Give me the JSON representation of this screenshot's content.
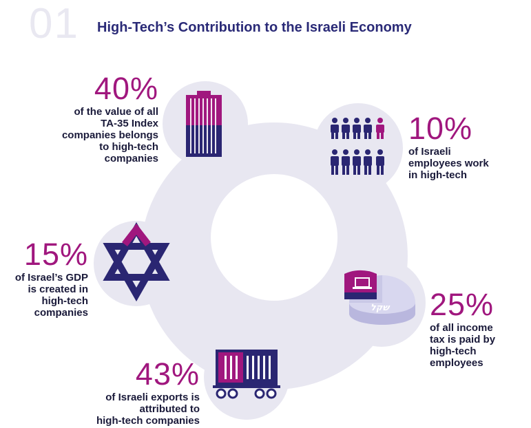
{
  "header": {
    "chapter_number": "01",
    "title": "High-Tech’s Contribution to the Israeli Economy"
  },
  "colors": {
    "ring": "#e8e7f1",
    "navy": "#2a2672",
    "magenta": "#a0177e",
    "lavender": "#c9c8e6"
  },
  "icons": [
    "building-icon",
    "people-icon",
    "star-of-david-icon",
    "tax-pie-icon",
    "cargo-train-icon"
  ],
  "stats": {
    "tase": {
      "percent": "40%",
      "lines": [
        "of the value of all",
        "TA-35 Index",
        "companies belongs",
        "to high-tech",
        "companies"
      ]
    },
    "employees": {
      "percent": "10%",
      "lines": [
        "of Israeli",
        "employees work",
        "in high-tech"
      ]
    },
    "gdp": {
      "percent": "15%",
      "lines": [
        "of Israel’s GDP",
        "is created in",
        "high-tech",
        "companies"
      ]
    },
    "income_tax": {
      "percent": "25%",
      "lines": [
        "of all income",
        "tax is paid by",
        "high-tech",
        "employees"
      ]
    },
    "exports": {
      "percent": "43%",
      "lines": [
        "of Israeli exports is",
        "attributed to",
        "high-tech companies"
      ]
    }
  }
}
